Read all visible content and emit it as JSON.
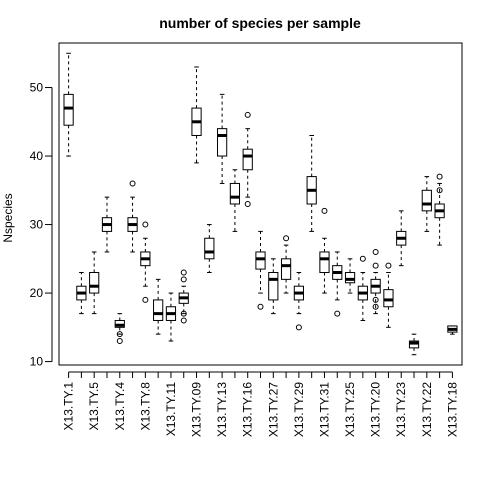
{
  "chart_data": {
    "type": "boxplot",
    "title": "number of species per sample",
    "xlabel": "",
    "ylabel": "Nspecies",
    "ylim": [
      9.5,
      56.5
    ],
    "yticks": [
      10,
      20,
      30,
      40,
      50
    ],
    "grid": false,
    "categories": [
      "X13.TY.1",
      "X13.TY.5",
      "X13.TY.4",
      "X13.TY.8",
      "X13.TY.11",
      "X13.TY.09",
      "X13.TY.13",
      "X13.TY.16",
      "X13.TY.27",
      "X13.TY.29",
      "X13.TY.31",
      "X13.TY.25",
      "X13.TY.20",
      "X13.TY.23",
      "X13.TY.22",
      "X13.TY.18"
    ],
    "tick_labels": [
      "X13.TY.1",
      "X13.TY.5",
      "X13.TY.4",
      "X13.TY.8",
      "X13.TY.11",
      "X13.TY.09",
      "X13.TY.13",
      "X13.TY.16",
      "X13.TY.27",
      "X13.TY.29",
      "X13.TY.31",
      "X13.TY.25",
      "X13.TY.20",
      "X13.TY.23",
      "X13.TY.22",
      "X13.TY.18"
    ],
    "boxes": [
      {
        "min": 40,
        "q1": 44.5,
        "median": 47,
        "q3": 49,
        "max": 55,
        "outliers": []
      },
      {
        "min": 17,
        "q1": 19,
        "median": 20,
        "q3": 21,
        "max": 23,
        "outliers": []
      },
      {
        "min": 17,
        "q1": 20,
        "median": 21,
        "q3": 23,
        "max": 26,
        "outliers": []
      },
      {
        "min": 26,
        "q1": 29,
        "median": 30,
        "q3": 31,
        "max": 34,
        "outliers": []
      },
      {
        "min": 14,
        "q1": 15,
        "median": 15.3,
        "q3": 16,
        "max": 17,
        "outliers": [
          13,
          14
        ]
      },
      {
        "min": 26,
        "q1": 29,
        "median": 30,
        "q3": 31,
        "max": 34,
        "outliers": [
          36
        ]
      },
      {
        "min": 21,
        "q1": 24,
        "median": 25,
        "q3": 26,
        "max": 28,
        "outliers": [
          19,
          30
        ]
      },
      {
        "min": 14,
        "q1": 16,
        "median": 17,
        "q3": 19,
        "max": 22,
        "outliers": []
      },
      {
        "min": 13,
        "q1": 16,
        "median": 17,
        "q3": 18,
        "max": 20,
        "outliers": []
      },
      {
        "min": 17,
        "q1": 18.5,
        "median": 19.3,
        "q3": 20,
        "max": 21,
        "outliers": [
          16,
          17,
          22,
          23
        ]
      },
      {
        "min": 39,
        "q1": 43,
        "median": 45,
        "q3": 47,
        "max": 53,
        "outliers": []
      },
      {
        "min": 23,
        "q1": 25,
        "median": 26,
        "q3": 28,
        "max": 30,
        "outliers": []
      },
      {
        "min": 36,
        "q1": 40,
        "median": 43,
        "q3": 44,
        "max": 49,
        "outliers": []
      },
      {
        "min": 29,
        "q1": 33,
        "median": 34,
        "q3": 36,
        "max": 38,
        "outliers": []
      },
      {
        "min": 34,
        "q1": 38,
        "median": 40,
        "q3": 41,
        "max": 44,
        "outliers": [
          33,
          46
        ]
      },
      {
        "min": 20,
        "q1": 23.5,
        "median": 25,
        "q3": 26,
        "max": 29,
        "outliers": [
          18
        ]
      },
      {
        "min": 17,
        "q1": 19,
        "median": 22,
        "q3": 23,
        "max": 25,
        "outliers": []
      },
      {
        "min": 20,
        "q1": 22,
        "median": 24,
        "q3": 25,
        "max": 27,
        "outliers": [
          28
        ]
      },
      {
        "min": 17,
        "q1": 19,
        "median": 20,
        "q3": 21,
        "max": 23,
        "outliers": [
          15
        ]
      },
      {
        "min": 29,
        "q1": 33,
        "median": 35,
        "q3": 37,
        "max": 43,
        "outliers": []
      },
      {
        "min": 20,
        "q1": 23,
        "median": 25,
        "q3": 26,
        "max": 28,
        "outliers": [
          32
        ]
      },
      {
        "min": 19,
        "q1": 22,
        "median": 23,
        "q3": 24,
        "max": 26,
        "outliers": [
          17
        ]
      },
      {
        "min": 20,
        "q1": 21.5,
        "median": 22,
        "q3": 23,
        "max": 25,
        "outliers": []
      },
      {
        "min": 16,
        "q1": 19,
        "median": 20,
        "q3": 21,
        "max": 23,
        "outliers": [
          25
        ]
      },
      {
        "min": 17,
        "q1": 20,
        "median": 21,
        "q3": 22,
        "max": 23,
        "outliers": [
          18,
          19,
          24,
          26
        ]
      },
      {
        "min": 15,
        "q1": 18,
        "median": 19,
        "q3": 20.5,
        "max": 23,
        "outliers": [
          24
        ]
      },
      {
        "min": 24,
        "q1": 27,
        "median": 28,
        "q3": 29,
        "max": 32,
        "outliers": []
      },
      {
        "min": 11,
        "q1": 12,
        "median": 12.7,
        "q3": 13,
        "max": 14,
        "outliers": []
      },
      {
        "min": 29,
        "q1": 32,
        "median": 33,
        "q3": 35,
        "max": 37,
        "outliers": []
      },
      {
        "min": 27,
        "q1": 31,
        "median": 32,
        "q3": 33,
        "max": 36,
        "outliers": [
          35,
          37
        ]
      },
      {
        "min": 14,
        "q1": 14.3,
        "median": 14.7,
        "q3": 15.2,
        "max": 15.2,
        "outliers": []
      }
    ]
  }
}
